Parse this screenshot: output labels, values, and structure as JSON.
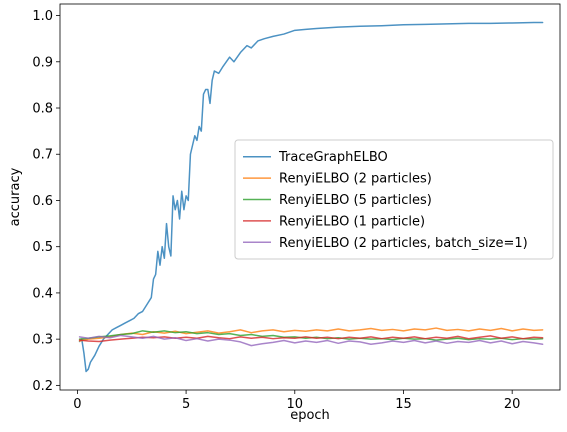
{
  "chart_data": {
    "type": "line",
    "xlabel": "epoch",
    "ylabel": "accuracy",
    "xlim": [
      -0.8,
      22.2
    ],
    "ylim": [
      0.19,
      1.025
    ],
    "xticks": [
      0,
      5,
      10,
      15,
      20
    ],
    "yticks": [
      0.2,
      0.3,
      0.4,
      0.5,
      0.6,
      0.7,
      0.8,
      0.9,
      1.0
    ],
    "xtick_labels": [
      "0",
      "5",
      "10",
      "15",
      "20"
    ],
    "ytick_labels": [
      "0.2",
      "0.3",
      "0.4",
      "0.5",
      "0.6",
      "0.7",
      "0.8",
      "0.9",
      "1.0"
    ],
    "grid": false,
    "legend_position": "center-right",
    "series": [
      {
        "name": "TraceGraphELBO",
        "color": "#1f77b4",
        "points": [
          [
            0.1,
            0.295
          ],
          [
            0.2,
            0.3
          ],
          [
            0.3,
            0.27
          ],
          [
            0.4,
            0.23
          ],
          [
            0.5,
            0.235
          ],
          [
            0.6,
            0.25
          ],
          [
            0.8,
            0.265
          ],
          [
            1.0,
            0.285
          ],
          [
            1.2,
            0.3
          ],
          [
            1.4,
            0.31
          ],
          [
            1.6,
            0.32
          ],
          [
            1.8,
            0.325
          ],
          [
            2.0,
            0.33
          ],
          [
            2.2,
            0.335
          ],
          [
            2.4,
            0.34
          ],
          [
            2.6,
            0.345
          ],
          [
            2.8,
            0.355
          ],
          [
            3.0,
            0.36
          ],
          [
            3.2,
            0.375
          ],
          [
            3.4,
            0.39
          ],
          [
            3.5,
            0.43
          ],
          [
            3.6,
            0.44
          ],
          [
            3.7,
            0.49
          ],
          [
            3.8,
            0.46
          ],
          [
            3.9,
            0.5
          ],
          [
            4.0,
            0.475
          ],
          [
            4.1,
            0.55
          ],
          [
            4.2,
            0.5
          ],
          [
            4.3,
            0.48
          ],
          [
            4.4,
            0.61
          ],
          [
            4.5,
            0.58
          ],
          [
            4.6,
            0.6
          ],
          [
            4.7,
            0.56
          ],
          [
            4.8,
            0.62
          ],
          [
            4.9,
            0.58
          ],
          [
            5.0,
            0.61
          ],
          [
            5.1,
            0.6
          ],
          [
            5.2,
            0.7
          ],
          [
            5.3,
            0.72
          ],
          [
            5.4,
            0.74
          ],
          [
            5.5,
            0.73
          ],
          [
            5.6,
            0.76
          ],
          [
            5.7,
            0.75
          ],
          [
            5.8,
            0.83
          ],
          [
            5.9,
            0.84
          ],
          [
            6.0,
            0.84
          ],
          [
            6.1,
            0.81
          ],
          [
            6.2,
            0.86
          ],
          [
            6.3,
            0.88
          ],
          [
            6.5,
            0.875
          ],
          [
            6.7,
            0.89
          ],
          [
            7.0,
            0.91
          ],
          [
            7.2,
            0.9
          ],
          [
            7.5,
            0.92
          ],
          [
            7.8,
            0.935
          ],
          [
            8.0,
            0.93
          ],
          [
            8.3,
            0.945
          ],
          [
            8.6,
            0.95
          ],
          [
            9.0,
            0.955
          ],
          [
            9.5,
            0.96
          ],
          [
            10.0,
            0.968
          ],
          [
            10.5,
            0.97
          ],
          [
            11.0,
            0.972
          ],
          [
            12.0,
            0.975
          ],
          [
            13.0,
            0.977
          ],
          [
            14.0,
            0.978
          ],
          [
            15.0,
            0.98
          ],
          [
            16.0,
            0.981
          ],
          [
            17.0,
            0.982
          ],
          [
            18.0,
            0.983
          ],
          [
            19.0,
            0.983
          ],
          [
            20.0,
            0.984
          ],
          [
            21.0,
            0.985
          ],
          [
            21.4,
            0.985
          ]
        ]
      },
      {
        "name": "RenyiELBO (2 particles)",
        "color": "#ff7f0e",
        "points": [
          [
            0.1,
            0.296
          ],
          [
            0.5,
            0.3
          ],
          [
            1.0,
            0.302
          ],
          [
            1.5,
            0.305
          ],
          [
            2.0,
            0.31
          ],
          [
            2.5,
            0.313
          ],
          [
            3.0,
            0.31
          ],
          [
            3.5,
            0.316
          ],
          [
            4.0,
            0.313
          ],
          [
            4.5,
            0.317
          ],
          [
            5.0,
            0.312
          ],
          [
            5.5,
            0.315
          ],
          [
            6.0,
            0.318
          ],
          [
            6.5,
            0.313
          ],
          [
            7.0,
            0.316
          ],
          [
            7.5,
            0.32
          ],
          [
            8.0,
            0.314
          ],
          [
            8.5,
            0.318
          ],
          [
            9.0,
            0.32
          ],
          [
            9.5,
            0.316
          ],
          [
            10.0,
            0.319
          ],
          [
            10.5,
            0.317
          ],
          [
            11.0,
            0.32
          ],
          [
            11.5,
            0.318
          ],
          [
            12.0,
            0.322
          ],
          [
            12.5,
            0.318
          ],
          [
            13.0,
            0.32
          ],
          [
            13.5,
            0.323
          ],
          [
            14.0,
            0.319
          ],
          [
            14.5,
            0.321
          ],
          [
            15.0,
            0.318
          ],
          [
            15.5,
            0.322
          ],
          [
            16.0,
            0.32
          ],
          [
            16.5,
            0.324
          ],
          [
            17.0,
            0.319
          ],
          [
            17.5,
            0.321
          ],
          [
            18.0,
            0.318
          ],
          [
            18.5,
            0.322
          ],
          [
            19.0,
            0.319
          ],
          [
            19.5,
            0.323
          ],
          [
            20.0,
            0.318
          ],
          [
            20.5,
            0.322
          ],
          [
            21.0,
            0.319
          ],
          [
            21.4,
            0.32
          ]
        ]
      },
      {
        "name": "RenyiELBO (5 particles)",
        "color": "#2ca02c",
        "points": [
          [
            0.1,
            0.3
          ],
          [
            0.5,
            0.302
          ],
          [
            1.0,
            0.305
          ],
          [
            1.5,
            0.307
          ],
          [
            2.0,
            0.31
          ],
          [
            2.5,
            0.312
          ],
          [
            3.0,
            0.318
          ],
          [
            3.5,
            0.315
          ],
          [
            4.0,
            0.318
          ],
          [
            4.5,
            0.314
          ],
          [
            5.0,
            0.316
          ],
          [
            5.5,
            0.312
          ],
          [
            6.0,
            0.314
          ],
          [
            6.5,
            0.31
          ],
          [
            7.0,
            0.312
          ],
          [
            7.5,
            0.308
          ],
          [
            8.0,
            0.31
          ],
          [
            8.5,
            0.306
          ],
          [
            9.0,
            0.308
          ],
          [
            9.5,
            0.304
          ],
          [
            10.0,
            0.305
          ],
          [
            10.5,
            0.302
          ],
          [
            11.0,
            0.304
          ],
          [
            11.5,
            0.301
          ],
          [
            12.0,
            0.303
          ],
          [
            12.5,
            0.3
          ],
          [
            13.0,
            0.302
          ],
          [
            13.5,
            0.3
          ],
          [
            14.0,
            0.301
          ],
          [
            14.5,
            0.299
          ],
          [
            15.0,
            0.302
          ],
          [
            15.5,
            0.3
          ],
          [
            16.0,
            0.301
          ],
          [
            16.5,
            0.298
          ],
          [
            17.0,
            0.3
          ],
          [
            17.5,
            0.302
          ],
          [
            18.0,
            0.299
          ],
          [
            18.5,
            0.301
          ],
          [
            19.0,
            0.3
          ],
          [
            19.5,
            0.302
          ],
          [
            20.0,
            0.299
          ],
          [
            20.5,
            0.301
          ],
          [
            21.0,
            0.3
          ],
          [
            21.4,
            0.301
          ]
        ]
      },
      {
        "name": "RenyiELBO (1 particle)",
        "color": "#d62728",
        "points": [
          [
            0.1,
            0.298
          ],
          [
            0.5,
            0.296
          ],
          [
            1.0,
            0.295
          ],
          [
            1.5,
            0.298
          ],
          [
            2.0,
            0.3
          ],
          [
            2.5,
            0.302
          ],
          [
            3.0,
            0.304
          ],
          [
            3.5,
            0.303
          ],
          [
            4.0,
            0.305
          ],
          [
            4.5,
            0.302
          ],
          [
            5.0,
            0.304
          ],
          [
            5.5,
            0.302
          ],
          [
            6.0,
            0.306
          ],
          [
            6.5,
            0.303
          ],
          [
            7.0,
            0.301
          ],
          [
            7.5,
            0.305
          ],
          [
            8.0,
            0.302
          ],
          [
            8.5,
            0.304
          ],
          [
            9.0,
            0.301
          ],
          [
            9.5,
            0.303
          ],
          [
            10.0,
            0.302
          ],
          [
            10.5,
            0.305
          ],
          [
            11.0,
            0.302
          ],
          [
            11.5,
            0.304
          ],
          [
            12.0,
            0.301
          ],
          [
            12.5,
            0.304
          ],
          [
            13.0,
            0.302
          ],
          [
            13.5,
            0.305
          ],
          [
            14.0,
            0.301
          ],
          [
            14.5,
            0.304
          ],
          [
            15.0,
            0.302
          ],
          [
            15.5,
            0.305
          ],
          [
            16.0,
            0.301
          ],
          [
            16.5,
            0.304
          ],
          [
            17.0,
            0.302
          ],
          [
            17.5,
            0.306
          ],
          [
            18.0,
            0.301
          ],
          [
            18.5,
            0.304
          ],
          [
            19.0,
            0.307
          ],
          [
            19.5,
            0.302
          ],
          [
            20.0,
            0.305
          ],
          [
            20.5,
            0.301
          ],
          [
            21.0,
            0.304
          ],
          [
            21.4,
            0.303
          ]
        ]
      },
      {
        "name": "RenyiELBO (2 particles, batch_size=1)",
        "color": "#9467bd",
        "points": [
          [
            0.1,
            0.305
          ],
          [
            0.5,
            0.302
          ],
          [
            1.0,
            0.306
          ],
          [
            1.5,
            0.303
          ],
          [
            2.0,
            0.308
          ],
          [
            2.5,
            0.305
          ],
          [
            3.0,
            0.302
          ],
          [
            3.5,
            0.306
          ],
          [
            4.0,
            0.3
          ],
          [
            4.5,
            0.303
          ],
          [
            5.0,
            0.297
          ],
          [
            5.5,
            0.301
          ],
          [
            6.0,
            0.296
          ],
          [
            6.5,
            0.3
          ],
          [
            7.0,
            0.298
          ],
          [
            7.5,
            0.294
          ],
          [
            8.0,
            0.286
          ],
          [
            8.5,
            0.29
          ],
          [
            9.0,
            0.293
          ],
          [
            9.5,
            0.297
          ],
          [
            10.0,
            0.292
          ],
          [
            10.5,
            0.296
          ],
          [
            11.0,
            0.293
          ],
          [
            11.5,
            0.297
          ],
          [
            12.0,
            0.291
          ],
          [
            12.5,
            0.296
          ],
          [
            13.0,
            0.294
          ],
          [
            13.5,
            0.289
          ],
          [
            14.0,
            0.292
          ],
          [
            14.5,
            0.296
          ],
          [
            15.0,
            0.293
          ],
          [
            15.5,
            0.297
          ],
          [
            16.0,
            0.292
          ],
          [
            16.5,
            0.296
          ],
          [
            17.0,
            0.291
          ],
          [
            17.5,
            0.295
          ],
          [
            18.0,
            0.293
          ],
          [
            18.5,
            0.297
          ],
          [
            19.0,
            0.292
          ],
          [
            19.5,
            0.296
          ],
          [
            20.0,
            0.29
          ],
          [
            20.5,
            0.295
          ],
          [
            21.0,
            0.292
          ],
          [
            21.4,
            0.289
          ]
        ]
      }
    ]
  }
}
